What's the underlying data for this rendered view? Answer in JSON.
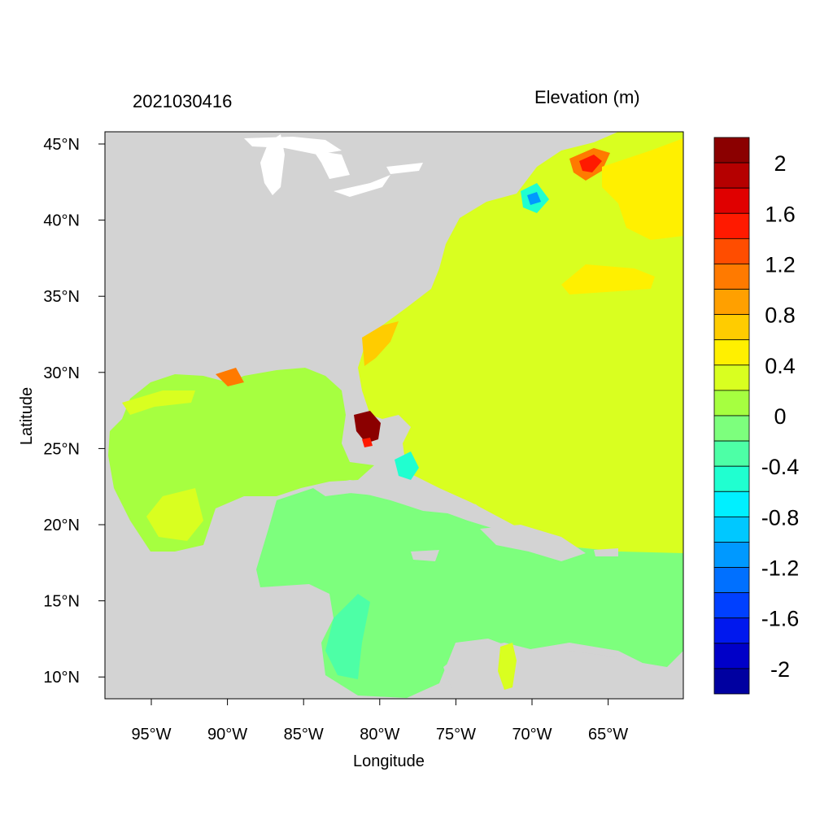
{
  "title_left": "2021030416",
  "title_right": "Elevation (m)",
  "x_axis": {
    "label": "Longitude",
    "ticks": [
      "95°W",
      "90°W",
      "85°W",
      "80°W",
      "75°W",
      "70°W",
      "65°W"
    ]
  },
  "y_axis": {
    "label": "Latitude",
    "ticks": [
      "45°N",
      "40°N",
      "35°N",
      "30°N",
      "25°N",
      "20°N",
      "15°N",
      "10°N"
    ]
  },
  "colorbar": {
    "labels": [
      "2",
      "1.6",
      "1.2",
      "0.8",
      "0.4",
      "0",
      "-0.4",
      "-0.8",
      "-1.2",
      "-1.6",
      "-2"
    ],
    "colors": [
      "#8b0000",
      "#b50000",
      "#e00000",
      "#ff1a00",
      "#ff4d00",
      "#ff7a00",
      "#ffa000",
      "#ffcc00",
      "#fff000",
      "#d9ff20",
      "#a6ff40",
      "#7dff7d",
      "#4dffa6",
      "#20ffd0",
      "#00f0ff",
      "#00c8ff",
      "#0099ff",
      "#0070ff",
      "#0040ff",
      "#0018ee",
      "#0000c8",
      "#0000a0"
    ]
  },
  "colors": {
    "land": "#d3d3d3",
    "lakes": "#ffffff",
    "gulf": "#a6ff40",
    "caribbean": "#7dff7d",
    "atlantic": "#d9ff20",
    "surge_high": "#8b0000"
  }
}
